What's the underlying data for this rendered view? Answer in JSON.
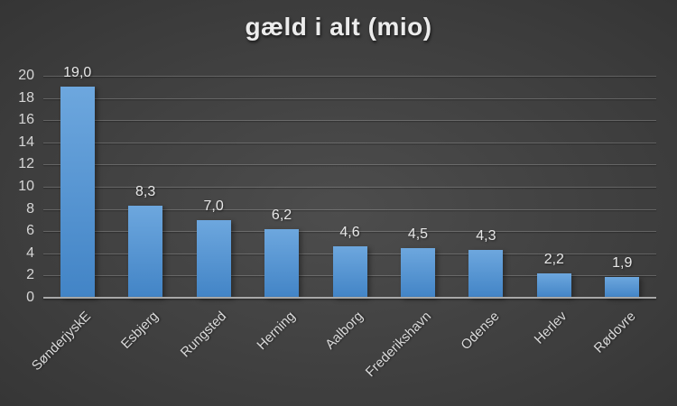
{
  "title": "gæld i alt (mio)",
  "chart_data": {
    "type": "bar",
    "title": "gæld i alt (mio)",
    "categories": [
      "SønderjyskE",
      "Esbjerg",
      "Rungsted",
      "Herning",
      "Aalborg",
      "Frederikshavn",
      "Odense",
      "Herlev",
      "Rødovre"
    ],
    "values": [
      19.0,
      8.3,
      7.0,
      6.2,
      4.6,
      4.5,
      4.3,
      2.2,
      1.9
    ],
    "value_labels": [
      "19,0",
      "8,3",
      "7,0",
      "6,2",
      "4,6",
      "4,5",
      "4,3",
      "2,2",
      "1,9"
    ],
    "xlabel": "",
    "ylabel": "",
    "ylim": [
      0,
      20
    ],
    "yticks": [
      0,
      2,
      4,
      6,
      8,
      10,
      12,
      14,
      16,
      18,
      20
    ],
    "grid": true,
    "legend": false,
    "decimal_separator": ",",
    "colors": {
      "bar_top": "#6da7de",
      "bar_bottom": "#4284c6",
      "background_center": "#4d4d4d",
      "background_edge": "#262626",
      "gridline": "rgba(255,255,255,0.20)",
      "axis_line": "#a8a8a8",
      "text": "#d9d9d9",
      "title_text": "#ececec"
    }
  }
}
